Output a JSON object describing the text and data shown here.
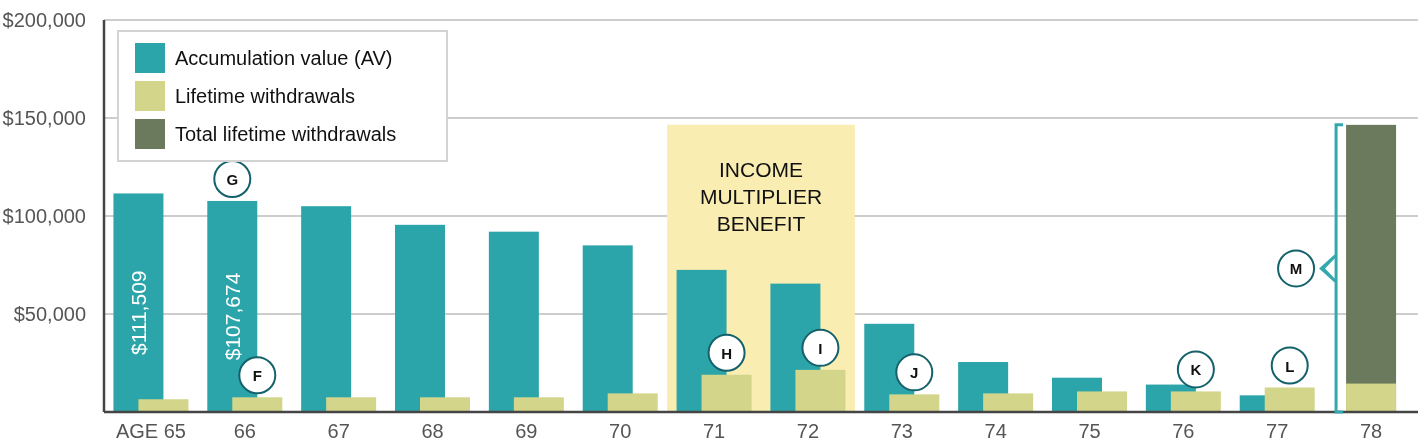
{
  "chart_data": {
    "type": "bar",
    "categories": [
      "AGE 65",
      "66",
      "67",
      "68",
      "69",
      "70",
      "71",
      "72",
      "73",
      "74",
      "75",
      "76",
      "77",
      "78"
    ],
    "series": [
      {
        "name": "Accumulation value (AV)",
        "color": "#2ca5aa",
        "values": [
          111509,
          107674,
          105000,
          95500,
          92000,
          85000,
          72500,
          65500,
          45000,
          25500,
          17500,
          14000,
          8500,
          null
        ],
        "value_labels": [
          "$111,509",
          "$107,674",
          null,
          null,
          null,
          null,
          null,
          null,
          null,
          null,
          null,
          null,
          null,
          null
        ]
      },
      {
        "name": "Lifetime withdrawals",
        "color": "#d2d58a",
        "values": [
          6500,
          7500,
          7500,
          7500,
          7500,
          9500,
          19000,
          21500,
          9000,
          9500,
          10500,
          10500,
          12500,
          14500
        ]
      },
      {
        "name": "Total lifetime withdrawals",
        "color": "#6b7a5c",
        "values": [
          null,
          null,
          null,
          null,
          null,
          null,
          null,
          null,
          null,
          null,
          null,
          null,
          null,
          146500
        ]
      }
    ],
    "ylim": [
      0,
      200000
    ],
    "yticks": [
      {
        "value": 50000,
        "label": "$50,000"
      },
      {
        "value": 100000,
        "label": "$100,000"
      },
      {
        "value": 150000,
        "label": "$150,000"
      },
      {
        "value": 200000,
        "label": "$200,000"
      }
    ],
    "grid": "y",
    "legend": "top left",
    "bands": [
      {
        "axis": "x",
        "from": "71",
        "to": "72",
        "label": "INCOME MULTIPLIER BENEFIT",
        "color": "#f9edb1"
      }
    ],
    "annotations": [
      {
        "text": "G",
        "x": "66",
        "y": 107674
      },
      {
        "text": "F",
        "x": "66",
        "y": 7500
      },
      {
        "text": "H",
        "x": "71",
        "y": 19000
      },
      {
        "text": "I",
        "x": "72",
        "y": 21500
      },
      {
        "text": "J",
        "x": "73",
        "y": 9000
      },
      {
        "text": "K",
        "x": "76",
        "y": 10500
      },
      {
        "text": "L",
        "x": "77",
        "y": 12500
      },
      "M"
    ]
  }
}
